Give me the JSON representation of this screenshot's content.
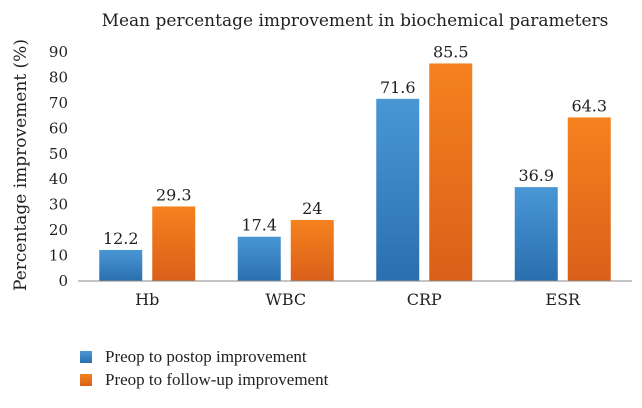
{
  "chart_data": {
    "type": "bar",
    "title": "Mean percentage improvement in biochemical parameters",
    "xlabel": "",
    "ylabel": "Percentage improvement (%)",
    "ylim": [
      0,
      90
    ],
    "yticks": [
      0,
      10,
      20,
      30,
      40,
      50,
      60,
      70,
      80,
      90
    ],
    "grid": false,
    "legend_position": "bottom-left",
    "categories": [
      "Hb",
      "WBC",
      "CRP",
      "ESR"
    ],
    "series": [
      {
        "name": "Preop to postop improvement",
        "values": [
          12.2,
          17.4,
          71.6,
          36.9
        ],
        "labels": [
          "12.2",
          "17.4",
          "71.6",
          "36.9"
        ],
        "color": "#3a86c8"
      },
      {
        "name": "Preop to follow-up improvement",
        "values": [
          29.3,
          24,
          85.5,
          64.3
        ],
        "labels": [
          "29.3",
          "24",
          "85.5",
          "64.3"
        ],
        "color": "#f07820"
      }
    ]
  }
}
